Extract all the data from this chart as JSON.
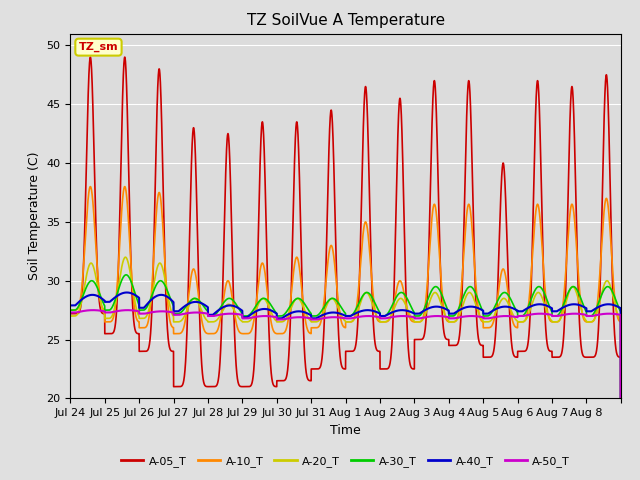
{
  "title": "TZ SoilVue A Temperature",
  "xlabel": "Time",
  "ylabel": "Soil Temperature (C)",
  "ylim": [
    20,
    51
  ],
  "yticks": [
    20,
    25,
    30,
    35,
    40,
    45,
    50
  ],
  "fig_bg": "#e0e0e0",
  "plot_bg": "#dcdcdc",
  "annotation_text": "TZ_sm",
  "annotation_bg": "#ffffcc",
  "annotation_border": "#cccc00",
  "series_names": [
    "A-05_T",
    "A-10_T",
    "A-20_T",
    "A-30_T",
    "A-40_T",
    "A-50_T"
  ],
  "series_colors": [
    "#cc0000",
    "#ff8800",
    "#cccc00",
    "#00cc00",
    "#0000cc",
    "#cc00cc"
  ],
  "series_lw": [
    1.2,
    1.2,
    1.2,
    1.2,
    1.5,
    1.5
  ],
  "tick_labels": [
    "Jul 24",
    "Jul 25",
    "Jul 26",
    "Jul 27",
    "Jul 28",
    "Jul 29",
    "Jul 30",
    "Jul 31",
    "Aug 1",
    "Aug 2",
    "Aug 3",
    "Aug 4",
    "Aug 5",
    "Aug 6",
    "Aug 7",
    "Aug 8"
  ],
  "n_days": 16,
  "ppd": 288,
  "peaks_05": [
    49.0,
    49.0,
    48.0,
    43.0,
    42.5,
    43.5,
    43.5,
    44.5,
    46.5,
    45.5,
    47.0,
    47.0,
    40.0,
    47.0,
    46.5,
    47.5
  ],
  "troughs_05": [
    27.2,
    25.5,
    24.0,
    21.0,
    21.0,
    21.0,
    21.5,
    22.5,
    24.0,
    22.5,
    25.0,
    24.5,
    23.5,
    24.0,
    23.5,
    23.5
  ],
  "peaks_10": [
    38.0,
    38.0,
    37.5,
    31.0,
    30.0,
    31.5,
    32.0,
    33.0,
    35.0,
    30.0,
    36.5,
    36.5,
    31.0,
    36.5,
    36.5,
    37.0
  ],
  "troughs_10": [
    27.5,
    26.5,
    26.0,
    25.5,
    25.5,
    25.5,
    25.5,
    26.0,
    26.5,
    26.5,
    26.5,
    26.5,
    26.0,
    26.5,
    26.5,
    26.5
  ],
  "peaks_20": [
    31.5,
    32.0,
    31.5,
    28.5,
    28.0,
    28.5,
    28.5,
    28.5,
    29.0,
    28.5,
    29.0,
    29.0,
    28.5,
    29.0,
    29.5,
    30.0
  ],
  "troughs_20": [
    27.0,
    26.8,
    26.8,
    26.5,
    26.5,
    26.5,
    26.5,
    26.5,
    26.5,
    26.5,
    26.5,
    26.5,
    26.5,
    26.5,
    26.5,
    26.5
  ],
  "peaks_30": [
    30.0,
    30.5,
    30.0,
    28.5,
    28.5,
    28.5,
    28.5,
    28.5,
    29.0,
    29.0,
    29.5,
    29.5,
    29.0,
    29.5,
    29.5,
    29.5
  ],
  "troughs_30": [
    27.5,
    27.5,
    27.5,
    27.2,
    27.0,
    27.0,
    27.0,
    27.0,
    27.0,
    27.0,
    27.0,
    27.0,
    27.0,
    27.0,
    27.0,
    27.0
  ],
  "peaks_40": [
    28.8,
    29.0,
    28.8,
    28.2,
    27.9,
    27.6,
    27.4,
    27.3,
    27.5,
    27.5,
    27.8,
    27.8,
    27.8,
    28.0,
    28.0,
    28.0
  ],
  "troughs_40": [
    27.9,
    28.2,
    27.7,
    27.4,
    27.1,
    26.9,
    26.8,
    26.8,
    27.0,
    27.0,
    27.2,
    27.2,
    27.2,
    27.4,
    27.4,
    27.4
  ],
  "peaks_50": [
    27.5,
    27.5,
    27.4,
    27.3,
    27.2,
    27.0,
    26.9,
    26.9,
    27.0,
    27.0,
    27.0,
    27.0,
    27.0,
    27.2,
    27.2,
    27.2
  ],
  "troughs_50": [
    27.3,
    27.3,
    27.2,
    27.1,
    27.0,
    26.8,
    26.7,
    26.7,
    26.8,
    26.8,
    26.8,
    26.8,
    26.8,
    27.0,
    27.0,
    27.0
  ],
  "spike_power_05": 8,
  "spike_power_10": 5,
  "spike_power_20": 3,
  "spike_power_30": 2,
  "spike_power_40": 1,
  "spike_power_50": 1,
  "peak_hour_05": 0.58,
  "peak_hour_10": 0.58,
  "peak_hour_20": 0.6,
  "peak_hour_30": 0.62,
  "peak_hour_40": 0.64,
  "peak_hour_50": 0.66
}
